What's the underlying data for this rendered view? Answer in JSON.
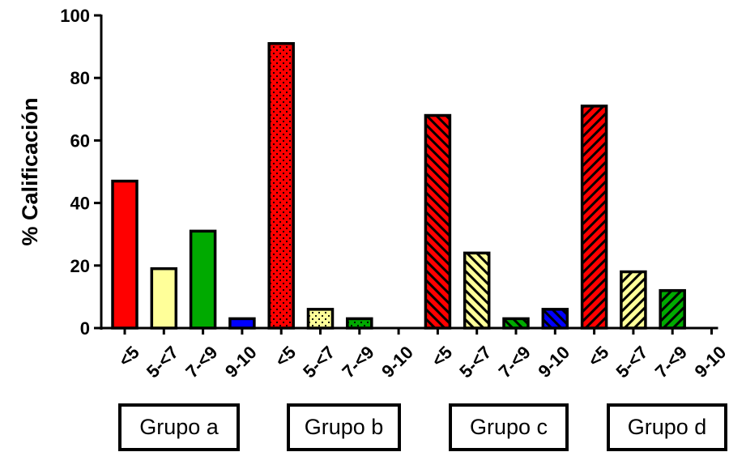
{
  "chart_data": {
    "type": "bar",
    "ylabel": "% Calificación",
    "ylim": [
      0,
      100
    ],
    "yticks": [
      0,
      20,
      40,
      60,
      80,
      100
    ],
    "groups": [
      {
        "name": "Grupo a",
        "pattern": "solid",
        "bars": [
          {
            "label": "<5",
            "value": 47
          },
          {
            "label": "5-<7",
            "value": 19
          },
          {
            "label": "7-<9",
            "value": 31
          },
          {
            "label": "9-10",
            "value": 3
          }
        ]
      },
      {
        "name": "Grupo b",
        "pattern": "dots",
        "bars": [
          {
            "label": "<5",
            "value": 91
          },
          {
            "label": "5-<7",
            "value": 6
          },
          {
            "label": "7-<9",
            "value": 3
          },
          {
            "label": "9-10",
            "value": 0
          }
        ]
      },
      {
        "name": "Grupo c",
        "pattern": "backslash-hatch",
        "bars": [
          {
            "label": "<5",
            "value": 68
          },
          {
            "label": "5-<7",
            "value": 24
          },
          {
            "label": "7-<9",
            "value": 3
          },
          {
            "label": "9-10",
            "value": 6
          }
        ]
      },
      {
        "name": "Grupo d",
        "pattern": "slash-hatch",
        "bars": [
          {
            "label": "<5",
            "value": 71
          },
          {
            "label": "5-<7",
            "value": 18
          },
          {
            "label": "7-<9",
            "value": 12
          },
          {
            "label": "9-10",
            "value": 0
          }
        ]
      }
    ],
    "category_colors": {
      "<5": "#ff0000",
      "5-<7": "#ffff99",
      "7-<9": "#00aa00",
      "9-10": "#0000ff"
    },
    "grid": false,
    "legend": "none"
  }
}
